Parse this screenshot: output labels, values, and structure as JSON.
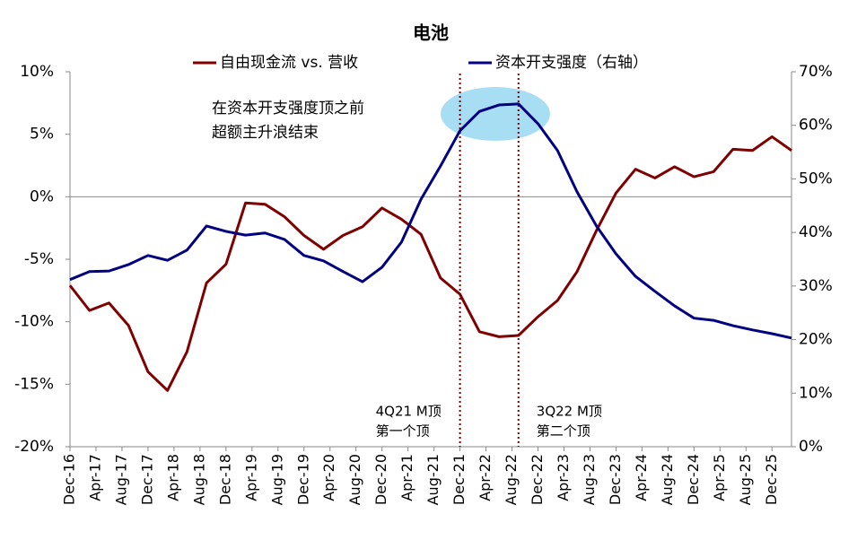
{
  "chart_data": {
    "type": "line",
    "title": "电池",
    "x": [
      "Dec-16",
      "Mar-17",
      "Jun-17",
      "Sep-17",
      "Dec-17",
      "Mar-18",
      "Jun-18",
      "Sep-18",
      "Dec-18",
      "Mar-19",
      "Jun-19",
      "Sep-19",
      "Dec-19",
      "Mar-20",
      "Jun-20",
      "Sep-20",
      "Dec-20",
      "Mar-21",
      "Jun-21",
      "Sep-21",
      "Dec-21",
      "Mar-22",
      "Jun-22",
      "Sep-22",
      "Dec-22",
      "Mar-23",
      "Jun-23",
      "Sep-23",
      "Dec-23",
      "Mar-24",
      "Jun-24",
      "Sep-24",
      "Dec-24",
      "Mar-25",
      "Jun-25",
      "Sep-25",
      "Dec-25",
      "Mar-26"
    ],
    "xticks": [
      "Dec-16",
      "Apr-17",
      "Aug-17",
      "Dec-17",
      "Apr-18",
      "Aug-18",
      "Dec-18",
      "Apr-19",
      "Aug-19",
      "Dec-19",
      "Apr-20",
      "Aug-20",
      "Dec-20",
      "Apr-21",
      "Aug-21",
      "Dec-21",
      "Apr-22",
      "Aug-22",
      "Dec-22",
      "Apr-23",
      "Aug-23",
      "Dec-23",
      "Apr-24",
      "Aug-24",
      "Dec-24",
      "Apr-25",
      "Aug-25",
      "Dec-25"
    ],
    "series": [
      {
        "name": "自由现金流 vs. 营收",
        "color": "#7f0000",
        "values": [
          -7.1,
          -9.1,
          -8.5,
          -10.3,
          -14.0,
          -15.5,
          -12.4,
          -6.9,
          -5.4,
          -0.5,
          -0.6,
          -1.6,
          -3.1,
          -4.2,
          -3.1,
          -2.4,
          -0.9,
          -1.8,
          -3.0,
          -6.5,
          -7.8,
          -10.8,
          -11.2,
          -11.1,
          -9.6,
          -8.3,
          -6.0,
          -2.7,
          0.3,
          2.2,
          1.5,
          2.4,
          1.6,
          2.0,
          3.8,
          3.7,
          4.8,
          3.7
        ]
      },
      {
        "name": "资本开支强度（右轴）",
        "color": "#000080",
        "axis": "y2",
        "values": [
          31.2,
          32.7,
          32.8,
          34.0,
          35.7,
          34.8,
          36.7,
          41.2,
          40.2,
          39.5,
          39.9,
          38.7,
          35.7,
          34.7,
          32.7,
          30.8,
          33.5,
          38.2,
          46.2,
          52.4,
          59.0,
          62.6,
          63.8,
          64.0,
          60.3,
          55.3,
          47.6,
          41.2,
          36.0,
          31.8,
          29.0,
          26.3,
          24.0,
          23.6,
          22.6,
          21.8,
          21.1,
          20.3
        ]
      }
    ],
    "ylim": [
      -20,
      10
    ],
    "yticks": [
      {
        "value": -20,
        "label": "-20%"
      },
      {
        "value": -15,
        "label": "-15%"
      },
      {
        "value": -10,
        "label": "-10%"
      },
      {
        "value": -5,
        "label": "-5%"
      },
      {
        "value": 0,
        "label": "0%"
      },
      {
        "value": 5,
        "label": "5%"
      },
      {
        "value": 10,
        "label": "10%"
      }
    ],
    "y2lim": [
      0,
      70
    ],
    "y2ticks": [
      {
        "value": 0,
        "label": "0%"
      },
      {
        "value": 10,
        "label": "10%"
      },
      {
        "value": 20,
        "label": "20%"
      },
      {
        "value": 30,
        "label": "30%"
      },
      {
        "value": 40,
        "label": "40%"
      },
      {
        "value": 50,
        "label": "50%"
      },
      {
        "value": 60,
        "label": "60%"
      },
      {
        "value": 70,
        "label": "70%"
      }
    ],
    "ytick_color": "#ff0000",
    "note": [
      "在资本开支强度顶之前",
      "超额主升浪结束"
    ],
    "markers": [
      {
        "x": "Dec-21",
        "lines": [
          "4Q21 M顶",
          "第一个顶"
        ]
      },
      {
        "x": "Sep-22",
        "lines": [
          "3Q22 M顶",
          "第二个顶"
        ]
      }
    ]
  }
}
